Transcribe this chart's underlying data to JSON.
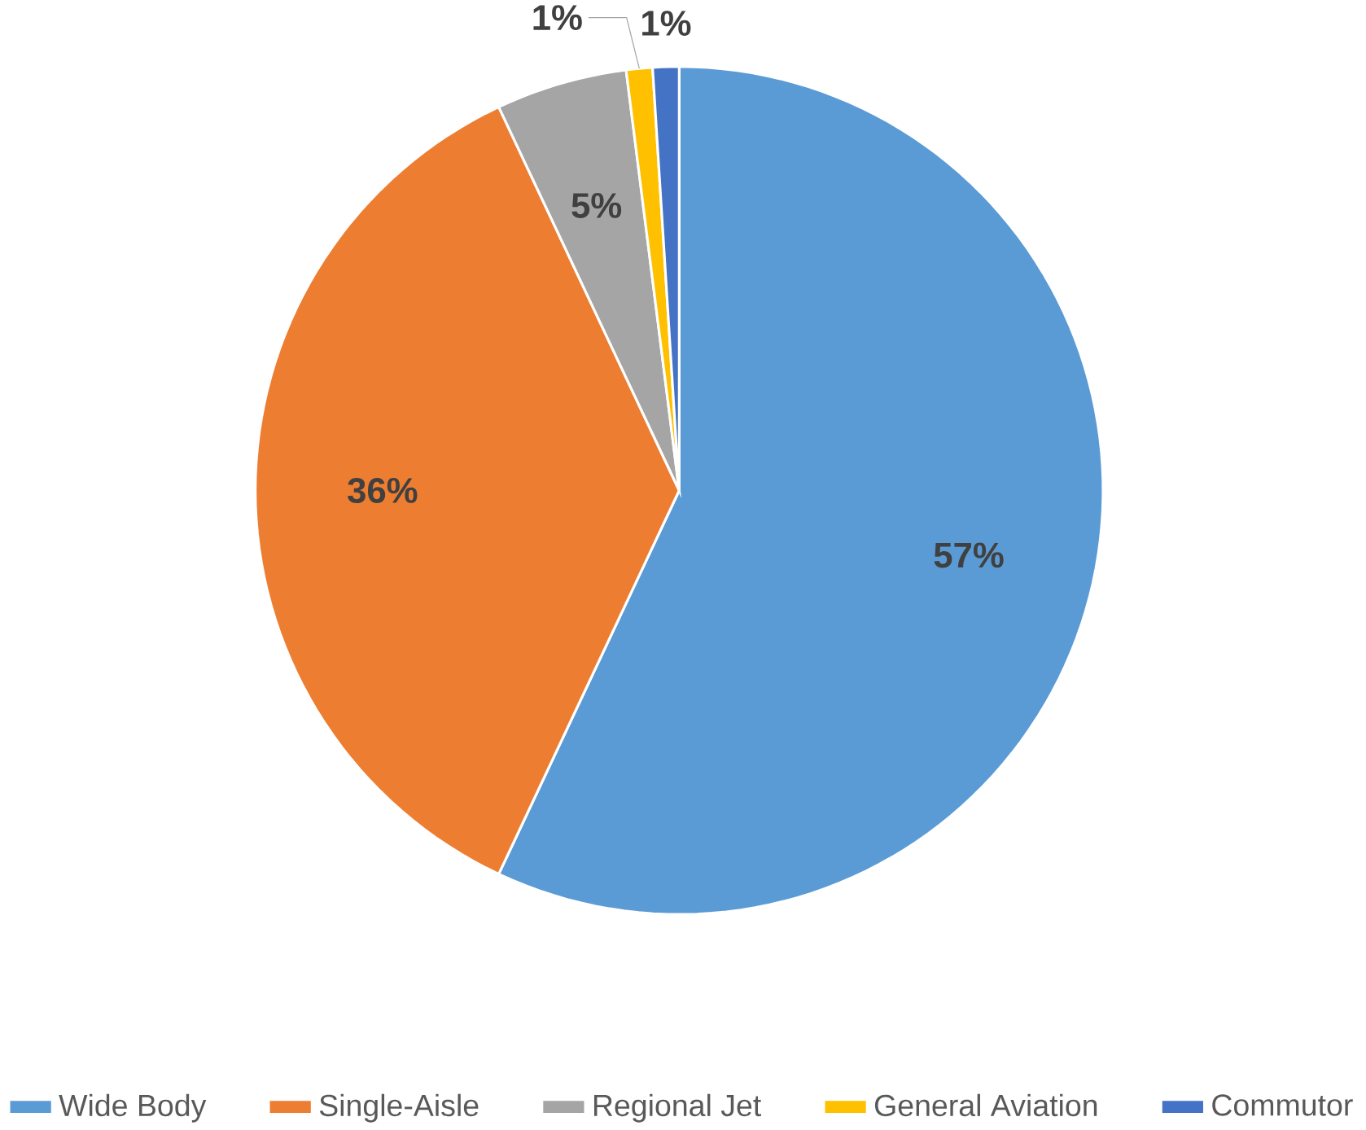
{
  "chart_data": {
    "type": "pie",
    "categories": [
      "Wide Body",
      "Single-Aisle",
      "Regional Jet",
      "General Aviation",
      "Commutor"
    ],
    "values": [
      57,
      36,
      5,
      1,
      1
    ],
    "colors": [
      "#5b9bd5",
      "#ed7d31",
      "#a5a5a5",
      "#ffc000",
      "#4472c4"
    ],
    "value_labels": [
      "57%",
      "36%",
      "5%",
      "1%",
      "1%"
    ],
    "legend": "bottom"
  }
}
